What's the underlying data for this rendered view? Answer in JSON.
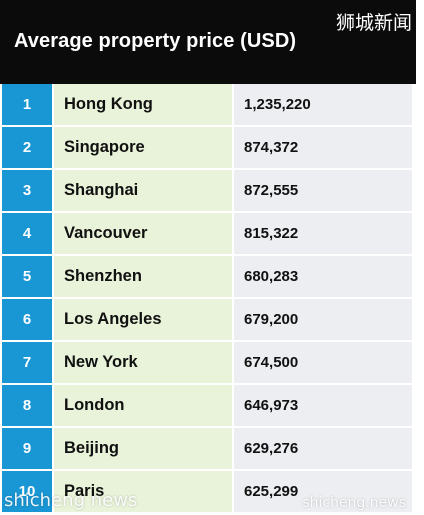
{
  "header": {
    "title": "Average property price (USD)",
    "watermark": "狮城新闻"
  },
  "chart_data": {
    "type": "table",
    "title": "Average property price (USD)",
    "columns": [
      "",
      "",
      ""
    ],
    "rows": [
      {
        "rank": "1",
        "city": "Hong Kong",
        "price": "1,235,220"
      },
      {
        "rank": "2",
        "city": "Singapore",
        "price": "874,372"
      },
      {
        "rank": "3",
        "city": "Shanghai",
        "price": "872,555"
      },
      {
        "rank": "4",
        "city": "Vancouver",
        "price": "815,322"
      },
      {
        "rank": "5",
        "city": "Shenzhen",
        "price": "680,283"
      },
      {
        "rank": "6",
        "city": "Los Angeles",
        "price": "679,200"
      },
      {
        "rank": "7",
        "city": "New York",
        "price": "674,500"
      },
      {
        "rank": "8",
        "city": "London",
        "price": "646,973"
      },
      {
        "rank": "9",
        "city": "Beijing",
        "price": "629,276"
      },
      {
        "rank": "10",
        "city": "Paris",
        "price": "625,299"
      }
    ]
  },
  "watermarks": {
    "bottom_left": "shicheng news",
    "bottom_right": "shicheng.news"
  },
  "colors": {
    "header_bg": "#0b0b0b",
    "rank_bg": "#1996d4",
    "city_bg": "#e8f3d9",
    "price_bg": "#eceef1"
  }
}
